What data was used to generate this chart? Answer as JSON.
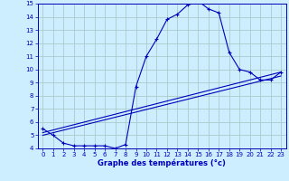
{
  "title": "Graphe des températures (°c)",
  "bg_color": "#cceeff",
  "grid_color": "#aacccc",
  "line_color": "#0000bb",
  "xlim": [
    -0.5,
    23.5
  ],
  "ylim": [
    4,
    15
  ],
  "xticks": [
    0,
    1,
    2,
    3,
    4,
    5,
    6,
    7,
    8,
    9,
    10,
    11,
    12,
    13,
    14,
    15,
    16,
    17,
    18,
    19,
    20,
    21,
    22,
    23
  ],
  "yticks": [
    4,
    5,
    6,
    7,
    8,
    9,
    10,
    11,
    12,
    13,
    14,
    15
  ],
  "line1_x": [
    0,
    1,
    2,
    3,
    4,
    5,
    6,
    7,
    8,
    9,
    10,
    11,
    12,
    13,
    14,
    15,
    16,
    17,
    18,
    19,
    20,
    21,
    22,
    23
  ],
  "line1_y": [
    5.5,
    5.0,
    4.4,
    4.2,
    4.2,
    4.2,
    4.2,
    4.0,
    4.3,
    8.7,
    11.0,
    12.3,
    13.8,
    14.2,
    14.9,
    15.2,
    14.6,
    14.3,
    11.3,
    10.0,
    9.8,
    9.2,
    9.2,
    9.8
  ],
  "line3_x": [
    0,
    23
  ],
  "line3_y": [
    5.0,
    9.5
  ],
  "line4_x": [
    0,
    23
  ],
  "line4_y": [
    5.2,
    9.8
  ]
}
